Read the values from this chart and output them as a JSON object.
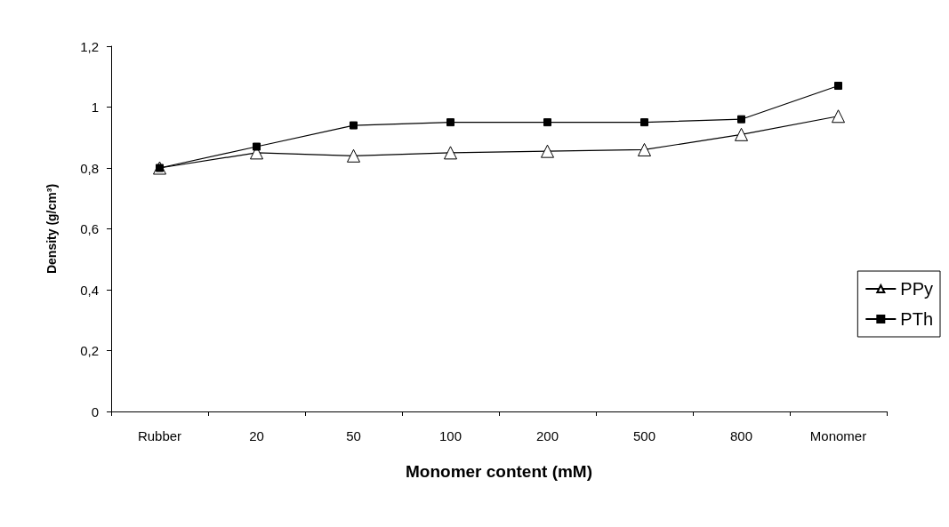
{
  "chart_data": {
    "type": "line",
    "xlabel": "Monomer content (mM)",
    "ylabel": "Density (g/cm³)",
    "categories": [
      "Rubber",
      "20",
      "50",
      "100",
      "200",
      "500",
      "800",
      "Monomer"
    ],
    "series": [
      {
        "name": "PPy",
        "color": "#000000",
        "marker": "triangle",
        "values": [
          0.8,
          0.85,
          0.84,
          0.85,
          0.855,
          0.86,
          0.91,
          0.97
        ]
      },
      {
        "name": "PTh",
        "color": "#000000",
        "marker": "square",
        "values": [
          0.8,
          0.87,
          0.94,
          0.95,
          0.95,
          0.95,
          0.96,
          1.07
        ]
      }
    ],
    "ylim": [
      0,
      1.2
    ],
    "yticks": [
      0,
      {
        "value": 0.2,
        "label": "0,2"
      },
      {
        "value": 0.4,
        "label": "0,4"
      },
      {
        "value": 0.6,
        "label": "0,6"
      },
      {
        "value": 0.8,
        "label": "0,8"
      },
      1,
      {
        "value": 1.2,
        "label": "1,2"
      }
    ],
    "grid": false,
    "legend": "right"
  }
}
